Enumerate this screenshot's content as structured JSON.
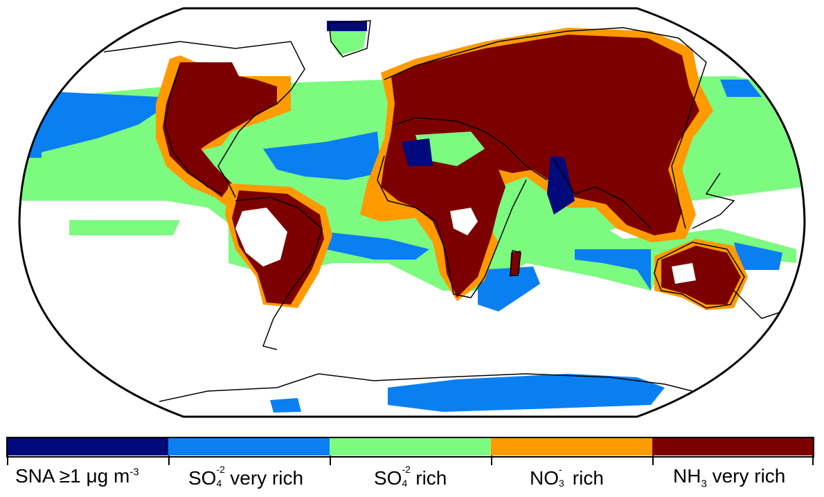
{
  "legend": {
    "items": [
      {
        "key": "sna",
        "main": "SNA ≥1 μg m",
        "sup": "-3",
        "color": "#000a7a"
      },
      {
        "key": "so4vr",
        "pre": "SO",
        "up": "-2",
        "dn": "4",
        "post": " very rich",
        "color": "#0a7ff2"
      },
      {
        "key": "so4r",
        "pre": "SO",
        "up": "-2",
        "dn": "4",
        "post": "  rich",
        "color": "#7dfa80"
      },
      {
        "key": "no3r",
        "pre": "NO",
        "up": "-",
        "dn": "3",
        "post": "  rich",
        "color": "#ff9a00"
      },
      {
        "key": "nh3vr",
        "pre": "NH",
        "dn": "3",
        "post": "  very rich",
        "color": "#7d0000"
      }
    ]
  },
  "colors": {
    "ocean_none": "#ffffff",
    "coast": "#000000"
  }
}
